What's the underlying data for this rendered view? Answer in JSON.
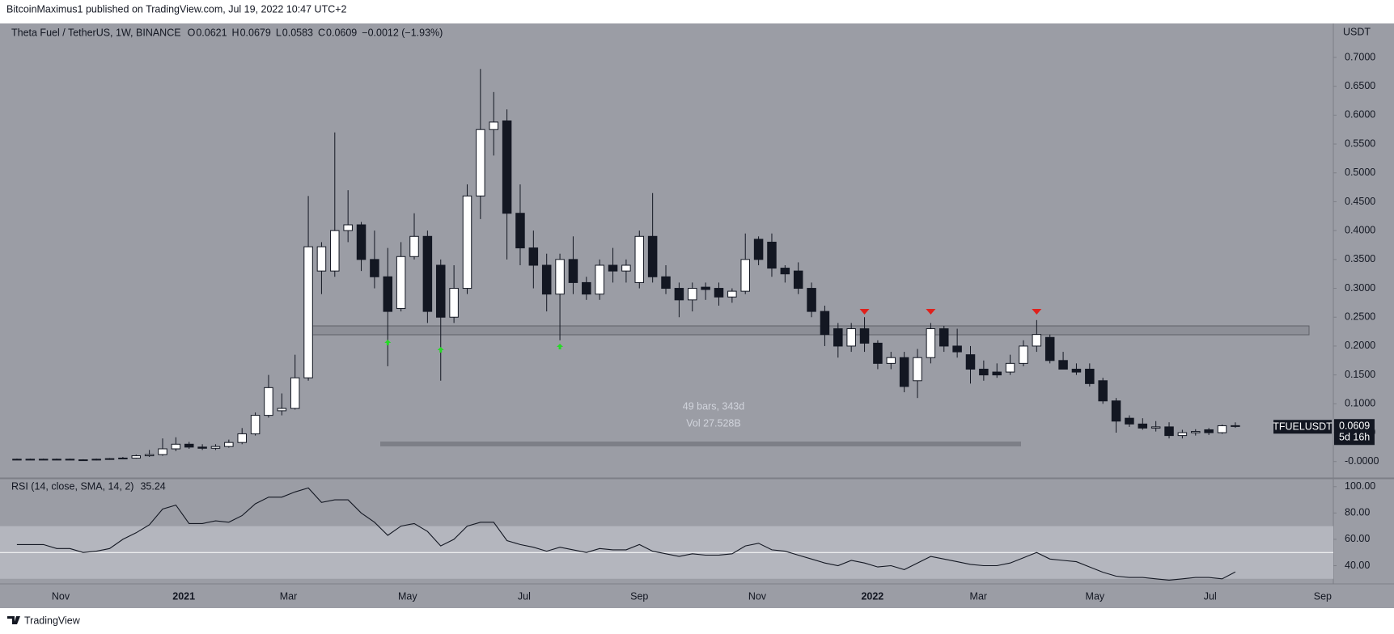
{
  "header": {
    "published": "BitcoinMaximus1 published on TradingView.com, Jul 19, 2022 10:47 UTC+2"
  },
  "footer": "TradingView",
  "chart_data": [
    {
      "type": "candlestick",
      "title": "Theta Fuel / TetherUS, 1W, BINANCE",
      "legend": [
        {
          "label": "O",
          "value": 0.0621
        },
        {
          "label": "H",
          "value": 0.0679
        },
        {
          "label": "L",
          "value": 0.0583
        },
        {
          "label": "C",
          "value": 0.0609
        }
      ],
      "change": "−0.0012 (−1.93%)",
      "unit": "USDT",
      "symbol": "TFUELUSDT",
      "last_price": 0.0609,
      "countdown": "5d 16h",
      "measure": [
        "49 bars, 343d",
        "Vol 27.528B"
      ],
      "up_color": "#ffffff",
      "down_color": "#131722",
      "border_color": "#131722",
      "open": [
        0.004,
        0.004,
        0.004,
        0.004,
        0.004,
        0.003,
        0.003,
        0.004,
        0.005,
        0.006,
        0.01,
        0.012,
        0.022,
        0.03,
        0.025,
        0.023,
        0.026,
        0.033,
        0.048,
        0.08,
        0.088,
        0.092,
        0.145,
        0.33,
        0.33,
        0.4,
        0.41,
        0.35,
        0.32,
        0.265,
        0.355,
        0.39,
        0.34,
        0.25,
        0.3,
        0.46,
        0.575,
        0.59,
        0.43,
        0.37,
        0.34,
        0.29,
        0.35,
        0.31,
        0.29,
        0.34,
        0.33,
        0.31,
        0.39,
        0.32,
        0.3,
        0.28,
        0.302,
        0.3,
        0.285,
        0.295,
        0.385,
        0.38,
        0.335,
        0.33,
        0.3,
        0.26,
        0.23,
        0.2,
        0.23,
        0.205,
        0.17,
        0.18,
        0.14,
        0.18,
        0.23,
        0.2,
        0.185,
        0.16,
        0.155,
        0.155,
        0.17,
        0.2,
        0.215,
        0.175,
        0.16,
        0.16,
        0.14,
        0.105,
        0.075,
        0.065,
        0.058,
        0.06,
        0.045,
        0.05,
        0.055,
        0.05,
        0.0621
      ],
      "high": [
        0.005,
        0.005,
        0.005,
        0.005,
        0.005,
        0.004,
        0.005,
        0.006,
        0.008,
        0.012,
        0.02,
        0.04,
        0.042,
        0.034,
        0.03,
        0.03,
        0.038,
        0.058,
        0.085,
        0.15,
        0.118,
        0.185,
        0.46,
        0.38,
        0.57,
        0.47,
        0.415,
        0.4,
        0.37,
        0.38,
        0.43,
        0.4,
        0.35,
        0.34,
        0.48,
        0.68,
        0.64,
        0.61,
        0.48,
        0.4,
        0.36,
        0.36,
        0.39,
        0.32,
        0.35,
        0.37,
        0.35,
        0.4,
        0.465,
        0.34,
        0.31,
        0.31,
        0.31,
        0.31,
        0.3,
        0.395,
        0.39,
        0.395,
        0.34,
        0.345,
        0.31,
        0.27,
        0.24,
        0.24,
        0.25,
        0.21,
        0.19,
        0.19,
        0.195,
        0.24,
        0.235,
        0.23,
        0.2,
        0.175,
        0.17,
        0.185,
        0.21,
        0.245,
        0.22,
        0.19,
        0.17,
        0.17,
        0.145,
        0.11,
        0.08,
        0.075,
        0.07,
        0.068,
        0.055,
        0.056,
        0.058,
        0.064,
        0.0679
      ],
      "low": [
        0.003,
        0.003,
        0.003,
        0.003,
        0.003,
        0.002,
        0.002,
        0.003,
        0.004,
        0.005,
        0.008,
        0.01,
        0.018,
        0.022,
        0.02,
        0.02,
        0.024,
        0.03,
        0.045,
        0.076,
        0.08,
        0.09,
        0.14,
        0.29,
        0.32,
        0.38,
        0.33,
        0.3,
        0.165,
        0.26,
        0.35,
        0.24,
        0.14,
        0.24,
        0.29,
        0.42,
        0.53,
        0.35,
        0.34,
        0.3,
        0.26,
        0.21,
        0.29,
        0.28,
        0.28,
        0.31,
        0.31,
        0.3,
        0.31,
        0.29,
        0.25,
        0.26,
        0.28,
        0.27,
        0.275,
        0.29,
        0.34,
        0.32,
        0.31,
        0.29,
        0.25,
        0.2,
        0.18,
        0.19,
        0.19,
        0.16,
        0.16,
        0.12,
        0.11,
        0.17,
        0.19,
        0.18,
        0.135,
        0.14,
        0.145,
        0.15,
        0.165,
        0.19,
        0.17,
        0.16,
        0.15,
        0.13,
        0.1,
        0.05,
        0.06,
        0.055,
        0.052,
        0.04,
        0.04,
        0.045,
        0.046,
        0.048,
        0.0583
      ],
      "close": [
        0.004,
        0.004,
        0.004,
        0.004,
        0.003,
        0.003,
        0.004,
        0.005,
        0.006,
        0.01,
        0.012,
        0.022,
        0.03,
        0.025,
        0.023,
        0.026,
        0.033,
        0.048,
        0.08,
        0.128,
        0.092,
        0.145,
        0.372,
        0.372,
        0.4,
        0.41,
        0.35,
        0.32,
        0.26,
        0.355,
        0.39,
        0.26,
        0.25,
        0.3,
        0.46,
        0.575,
        0.588,
        0.43,
        0.37,
        0.34,
        0.29,
        0.35,
        0.31,
        0.29,
        0.34,
        0.33,
        0.34,
        0.39,
        0.32,
        0.3,
        0.28,
        0.3,
        0.298,
        0.285,
        0.295,
        0.35,
        0.35,
        0.335,
        0.325,
        0.3,
        0.26,
        0.22,
        0.2,
        0.23,
        0.205,
        0.17,
        0.18,
        0.13,
        0.18,
        0.23,
        0.2,
        0.19,
        0.16,
        0.15,
        0.15,
        0.17,
        0.2,
        0.22,
        0.175,
        0.16,
        0.155,
        0.135,
        0.105,
        0.07,
        0.065,
        0.058,
        0.06,
        0.045,
        0.05,
        0.052,
        0.05,
        0.062,
        0.0609
      ],
      "xlim": [
        -0.73,
        99.4
      ],
      "xticks": [
        {
          "value": 3.3,
          "label": "Nov"
        },
        {
          "value": 12.6,
          "label": "2021"
        },
        {
          "value": 20.5,
          "label": "Mar"
        },
        {
          "value": 29.5,
          "label": "May"
        },
        {
          "value": 38.3,
          "label": "Jul"
        },
        {
          "value": 47.0,
          "label": "Sep"
        },
        {
          "value": 55.9,
          "label": "Nov"
        },
        {
          "value": 64.6,
          "label": "2022"
        },
        {
          "value": 72.6,
          "label": "Mar"
        },
        {
          "value": 81.4,
          "label": "May"
        },
        {
          "value": 90.1,
          "label": "Jul"
        },
        {
          "value": 98.6,
          "label": "Sep"
        }
      ],
      "ylim": [
        -0.027,
        0.756
      ],
      "yticks": [
        {
          "value": 0.7,
          "label": "0.7000"
        },
        {
          "value": 0.65,
          "label": "0.6500"
        },
        {
          "value": 0.6,
          "label": "0.6000"
        },
        {
          "value": 0.55,
          "label": "0.5500"
        },
        {
          "value": 0.5,
          "label": "0.5000"
        },
        {
          "value": 0.45,
          "label": "0.4500"
        },
        {
          "value": 0.4,
          "label": "0.4000"
        },
        {
          "value": 0.35,
          "label": "0.3500"
        },
        {
          "value": 0.3,
          "label": "0.3000"
        },
        {
          "value": 0.25,
          "label": "0.2500"
        },
        {
          "value": 0.2,
          "label": "0.2000"
        },
        {
          "value": 0.15,
          "label": "0.1500"
        },
        {
          "value": 0.1,
          "label": "0.1000"
        },
        {
          "value": 0.05,
          "label": "0.0500"
        },
        {
          "value": 0,
          "label": "-0.0000"
        }
      ]
    },
    {
      "type": "line",
      "title": "RSI (14, close, SMA, 14, 2)",
      "color": "#131722",
      "values": [
        56,
        56,
        56,
        53,
        53,
        50,
        51,
        53,
        60,
        65,
        71,
        83,
        86,
        72,
        72,
        74,
        73,
        78,
        87,
        92,
        92,
        96,
        99,
        88,
        90,
        90,
        80,
        73,
        63,
        70,
        72,
        66,
        55,
        60,
        70,
        73,
        73,
        59,
        56,
        54,
        51,
        54,
        52,
        50,
        53,
        52,
        52,
        56,
        51,
        49,
        47,
        49,
        48,
        48,
        49,
        55,
        57,
        52,
        51,
        48,
        45,
        42,
        40,
        44,
        42,
        39,
        40,
        37,
        42,
        47,
        45,
        43,
        41,
        40,
        40,
        42,
        46,
        50,
        45,
        44,
        43,
        39,
        35,
        32,
        31,
        31,
        30,
        29,
        30,
        31,
        31,
        30,
        35.24
      ],
      "ylim": [
        27.4,
        105.4
      ],
      "yticks": [
        {
          "value": 100,
          "label": "100.00"
        },
        {
          "value": 80,
          "label": "80.00"
        },
        {
          "value": 60,
          "label": "60.00"
        },
        {
          "value": 40,
          "label": "40.00"
        }
      ],
      "band": [
        30,
        70
      ],
      "midline": 50
    }
  ]
}
